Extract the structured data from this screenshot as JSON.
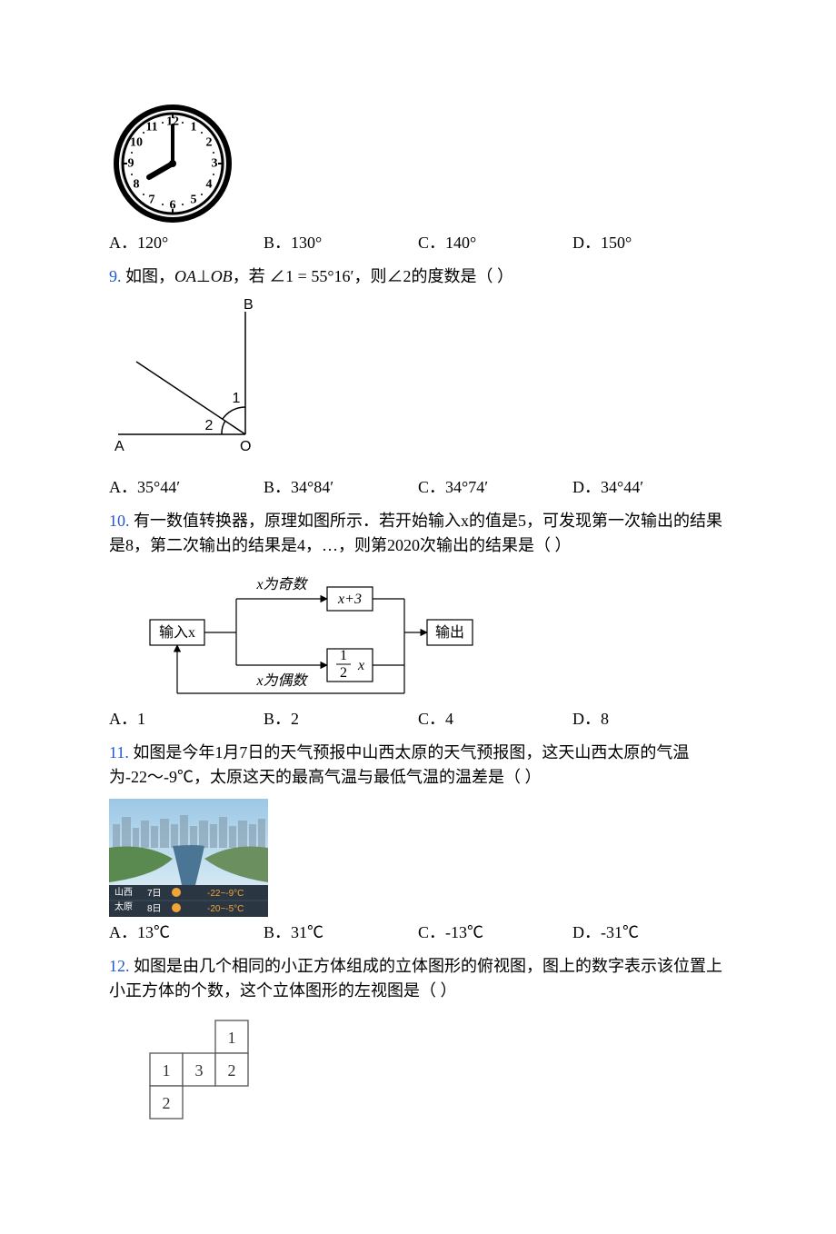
{
  "q8": {
    "options": {
      "A": "A．120°",
      "B": "B．130°",
      "C": "C．140°",
      "D": "D．150°"
    },
    "clock": {
      "face_stroke": "#000000",
      "tick_stroke": "#000000",
      "hand_stroke": "#000000",
      "hour": 8,
      "minute": 0
    }
  },
  "q9": {
    "num": "9.",
    "text_parts": [
      "如图，",
      "OA",
      "⊥",
      "OB",
      "，若 ",
      "∠1 = 55°16′",
      "，则∠2的度数是（  ）"
    ],
    "labels": {
      "A": "A",
      "B": "B",
      "O": "O",
      "one": "1",
      "two": "2"
    },
    "options": {
      "A": "A．35°44′",
      "B": "B．34°84′",
      "C": "C．34°74′",
      "D": "D．34°44′"
    }
  },
  "q10": {
    "num": "10.",
    "text": "有一数值转换器，原理如图所示．若开始输入x的值是5，可发现第一次输出的结果是8，第二次输出的结果是4，…，则第2020次输出的结果是（  ）",
    "flow": {
      "input": "输入x",
      "odd_label": "x为奇数",
      "even_label": "x为偶数",
      "odd_op": "x+3",
      "even_op_num": "1",
      "even_op_den": "2",
      "even_op_tail": "x",
      "output": "输出",
      "stroke": "#000000",
      "fontsize": 16
    },
    "options": {
      "A": "A．1",
      "B": "B．2",
      "C": "C．4",
      "D": "D．8"
    }
  },
  "q11": {
    "num": "11.",
    "text": "如图是今年1月7日的天气预报中山西太原的天气预报图，这天山西太原的气温为-22～-9℃，太原这天的最高气温与最低气温的温差是（  ）",
    "weather": {
      "sky_top": "#9cc8e6",
      "sky_bottom": "#d4e8f3",
      "city": "#6b8f5f",
      "water": "#4a7594",
      "grass": "#5a8a4f",
      "bar_bg": "#2a3642",
      "text_color": "#ffffff",
      "orange": "#f2a33a",
      "line1_left": "山西",
      "line1_right": "太原",
      "line1_date": "7日",
      "line1_temp": "-22~-9°C",
      "line2_date": "8日",
      "line2_temp": "-20~-5°C"
    },
    "options": {
      "A": "A．13℃",
      "B": "B．31℃",
      "C": "C．-13℃",
      "D": "D．-31℃"
    }
  },
  "q12": {
    "num": "12.",
    "text": "如图是由几个相同的小正方体组成的立体图形的俯视图，图上的数字表示该位置上小正方体的个数，这个立体图形的左视图是（  ）",
    "grid": {
      "cells": [
        {
          "r": 0,
          "c": 2,
          "v": "1"
        },
        {
          "r": 1,
          "c": 0,
          "v": "1"
        },
        {
          "r": 1,
          "c": 1,
          "v": "3"
        },
        {
          "r": 1,
          "c": 2,
          "v": "2"
        },
        {
          "r": 2,
          "c": 0,
          "v": "2"
        }
      ],
      "cell_size": 36,
      "stroke": "#555555",
      "font": "#333333"
    }
  }
}
